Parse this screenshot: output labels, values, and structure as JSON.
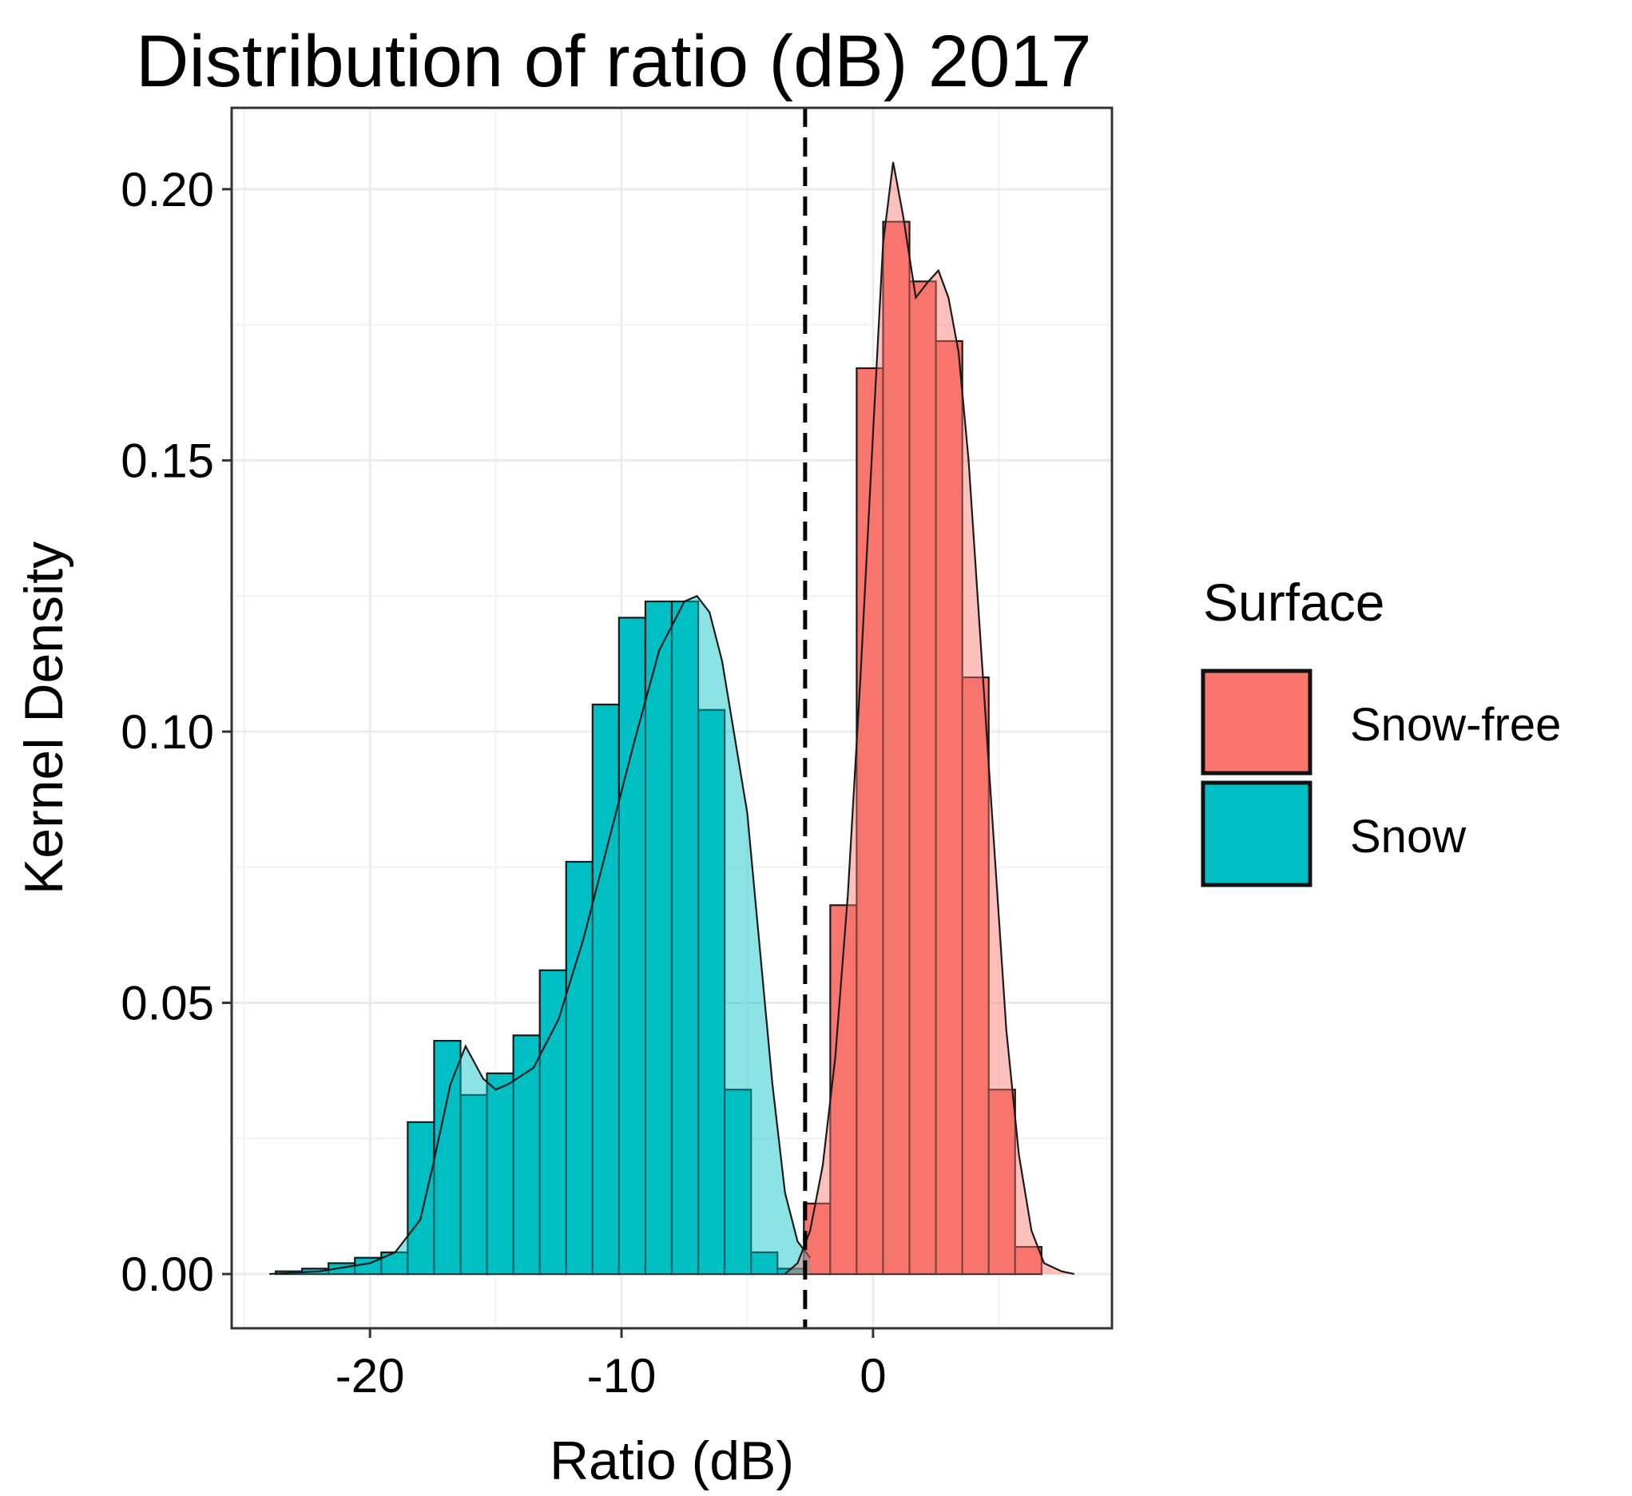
{
  "chart_data": {
    "type": "bar",
    "title": "Distribution of ratio (dB) 2017",
    "xlabel": "Ratio (dB)",
    "ylabel": "Kernel Density",
    "xlim": [
      -25.5,
      9.5
    ],
    "ylim": [
      -0.01,
      0.215
    ],
    "xticks": [
      -20,
      -10,
      0
    ],
    "xtick_labels": [
      "-20",
      "-10",
      "0"
    ],
    "yticks": [
      0.0,
      0.05,
      0.1,
      0.15,
      0.2
    ],
    "ytick_labels": [
      "0.00",
      "0.05",
      "0.10",
      "0.15",
      "0.20"
    ],
    "grid": true,
    "threshold_line": {
      "x": -2.7,
      "style": "dashed",
      "color": "#000000"
    },
    "legend": {
      "title": "Surface",
      "position": "right",
      "entries": [
        {
          "label": "Snow-free",
          "color": "#f8766d"
        },
        {
          "label": "Snow",
          "color": "#00bfc4"
        }
      ]
    },
    "bin_width": 1.05,
    "series": [
      {
        "name": "Snow",
        "color": "#00bfc4",
        "histogram": {
          "bin_edges": [
            -23.75,
            -22.7,
            -21.65,
            -20.6,
            -19.55,
            -18.5,
            -17.45,
            -16.4,
            -15.35,
            -14.3,
            -13.25,
            -12.2,
            -11.15,
            -10.1,
            -9.05,
            -8.0,
            -6.95,
            -5.9,
            -4.85,
            -3.8,
            -2.75
          ],
          "values": [
            0.0005,
            0.001,
            0.002,
            0.003,
            0.004,
            0.028,
            0.043,
            0.033,
            0.037,
            0.044,
            0.056,
            0.076,
            0.105,
            0.121,
            0.124,
            0.124,
            0.104,
            0.034,
            0.004,
            0.001
          ]
        },
        "density": {
          "x": [
            -24.0,
            -22.0,
            -20.0,
            -19.0,
            -18.0,
            -17.5,
            -16.8,
            -16.2,
            -15.5,
            -15.0,
            -14.5,
            -13.5,
            -12.5,
            -11.5,
            -10.5,
            -9.5,
            -8.5,
            -7.5,
            -7.0,
            -6.5,
            -6.0,
            -5.0,
            -4.5,
            -4.0,
            -3.5,
            -3.0,
            -2.5
          ],
          "y": [
            0.0,
            0.0005,
            0.002,
            0.004,
            0.01,
            0.02,
            0.035,
            0.042,
            0.036,
            0.034,
            0.035,
            0.038,
            0.047,
            0.062,
            0.08,
            0.098,
            0.115,
            0.124,
            0.125,
            0.122,
            0.113,
            0.085,
            0.06,
            0.035,
            0.015,
            0.006,
            0.003
          ]
        }
      },
      {
        "name": "Snow-free",
        "color": "#f8766d",
        "histogram": {
          "bin_edges": [
            -2.75,
            -1.7,
            -0.65,
            0.4,
            1.45,
            2.5,
            3.55,
            4.6,
            5.65,
            6.7
          ],
          "values": [
            0.013,
            0.068,
            0.167,
            0.194,
            0.183,
            0.172,
            0.11,
            0.034,
            0.005
          ]
        },
        "density": {
          "x": [
            -3.5,
            -3.0,
            -2.5,
            -2.0,
            -1.5,
            -1.0,
            -0.5,
            0.0,
            0.4,
            0.8,
            1.2,
            1.7,
            2.2,
            2.6,
            3.0,
            3.4,
            3.8,
            4.3,
            4.8,
            5.3,
            5.8,
            6.3,
            6.8,
            7.5,
            8.0
          ],
          "y": [
            0.0,
            0.002,
            0.008,
            0.02,
            0.04,
            0.07,
            0.11,
            0.155,
            0.19,
            0.205,
            0.195,
            0.18,
            0.183,
            0.185,
            0.18,
            0.17,
            0.15,
            0.115,
            0.08,
            0.045,
            0.022,
            0.008,
            0.002,
            0.0005,
            0.0
          ]
        }
      }
    ]
  }
}
